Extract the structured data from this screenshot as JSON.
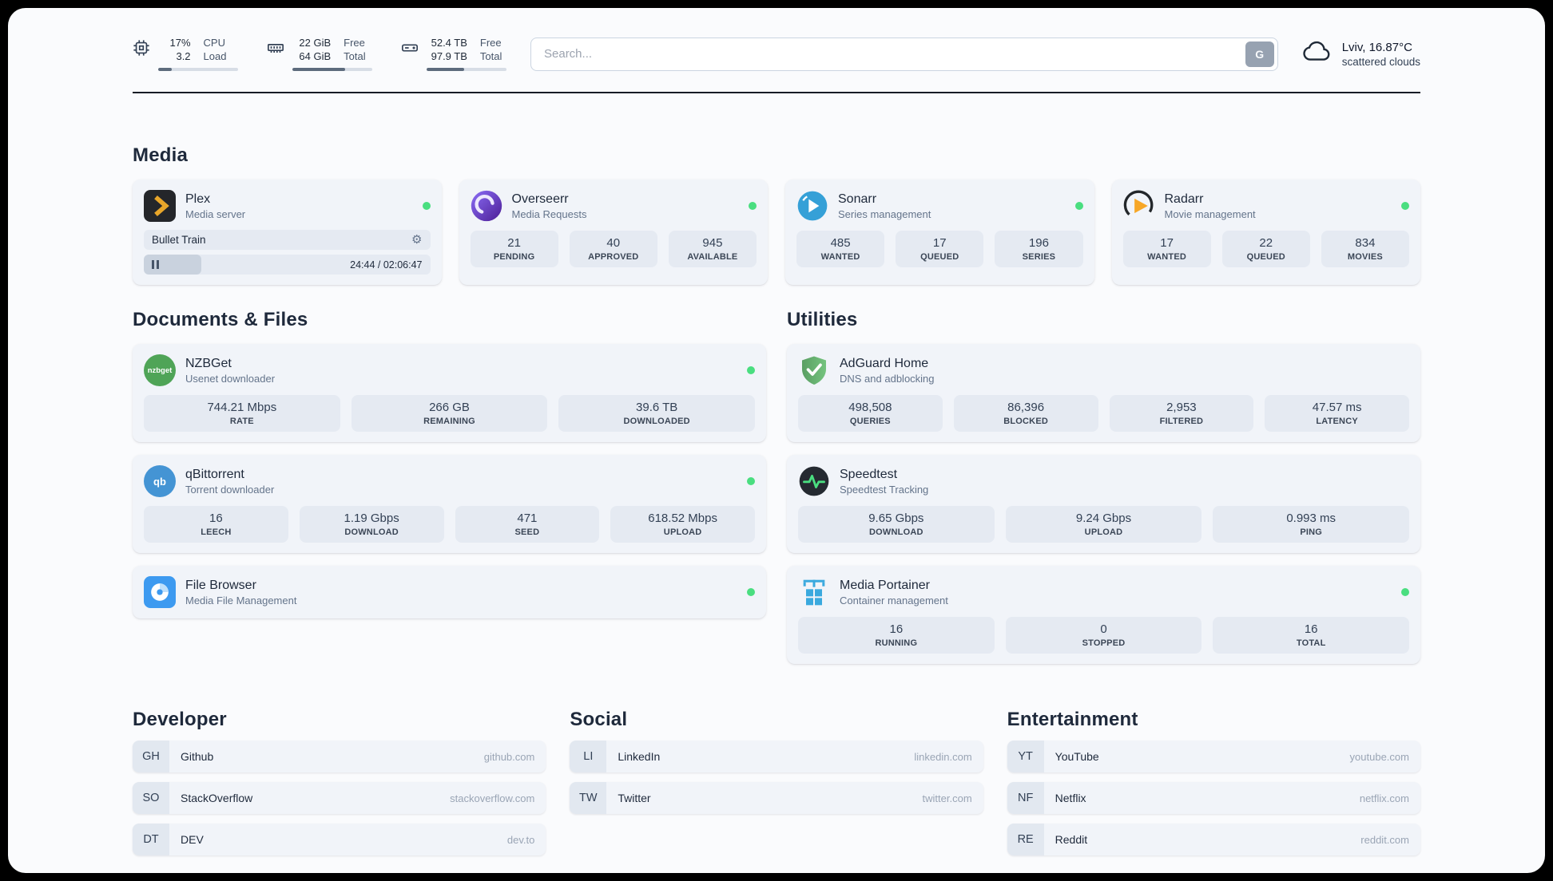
{
  "colors": {
    "status_online": "#4ade80",
    "accent_fill": "#5d6b7d"
  },
  "icons": {
    "gear": "⚙"
  },
  "topbar": {
    "resources": [
      {
        "name": "cpu",
        "values": [
          "17%",
          "3.2"
        ],
        "labels": [
          "CPU",
          "Load"
        ],
        "percent": 17
      },
      {
        "name": "memory",
        "values": [
          "22 GiB",
          "64 GiB"
        ],
        "labels": [
          "Free",
          "Total"
        ],
        "percent": 66
      },
      {
        "name": "disk",
        "values": [
          "52.4 TB",
          "97.9 TB"
        ],
        "labels": [
          "Free",
          "Total"
        ],
        "percent": 47
      }
    ],
    "search": {
      "placeholder": "Search...",
      "button_label": "G"
    },
    "weather": {
      "location": "Lviv, 16.87°C",
      "condition": "scattered clouds"
    }
  },
  "sections": {
    "media": {
      "title": "Media",
      "cards": [
        {
          "name": "Plex",
          "description": "Media server",
          "online": true,
          "player": {
            "track": "Bullet Train",
            "time_display": "24:44 / 02:06:47",
            "progress_percent": 20
          }
        },
        {
          "name": "Overseerr",
          "description": "Media Requests",
          "online": true,
          "stats": [
            {
              "value": "21",
              "label": "PENDING"
            },
            {
              "value": "40",
              "label": "APPROVED"
            },
            {
              "value": "945",
              "label": "AVAILABLE"
            }
          ]
        },
        {
          "name": "Sonarr",
          "description": "Series management",
          "online": true,
          "stats": [
            {
              "value": "485",
              "label": "WANTED"
            },
            {
              "value": "17",
              "label": "QUEUED"
            },
            {
              "value": "196",
              "label": "SERIES"
            }
          ]
        },
        {
          "name": "Radarr",
          "description": "Movie management",
          "online": true,
          "stats": [
            {
              "value": "17",
              "label": "WANTED"
            },
            {
              "value": "22",
              "label": "QUEUED"
            },
            {
              "value": "834",
              "label": "MOVIES"
            }
          ]
        }
      ]
    },
    "documents": {
      "title": "Documents & Files",
      "cards": [
        {
          "name": "NZBGet",
          "description": "Usenet downloader",
          "online": true,
          "icon_label": "nzbget",
          "stats": [
            {
              "value": "744.21 Mbps",
              "label": "RATE"
            },
            {
              "value": "266 GB",
              "label": "REMAINING"
            },
            {
              "value": "39.6 TB",
              "label": "DOWNLOADED"
            }
          ]
        },
        {
          "name": "qBittorrent",
          "description": "Torrent downloader",
          "online": true,
          "icon_label": "qb",
          "stats": [
            {
              "value": "16",
              "label": "LEECH"
            },
            {
              "value": "1.19 Gbps",
              "label": "DOWNLOAD"
            },
            {
              "value": "471",
              "label": "SEED"
            },
            {
              "value": "618.52 Mbps",
              "label": "UPLOAD"
            }
          ]
        },
        {
          "name": "File Browser",
          "description": "Media File Management",
          "online": true
        }
      ]
    },
    "utilities": {
      "title": "Utilities",
      "cards": [
        {
          "name": "AdGuard Home",
          "description": "DNS and adblocking",
          "online": false,
          "stats": [
            {
              "value": "498,508",
              "label": "QUERIES"
            },
            {
              "value": "86,396",
              "label": "BLOCKED"
            },
            {
              "value": "2,953",
              "label": "FILTERED"
            },
            {
              "value": "47.57 ms",
              "label": "LATENCY"
            }
          ]
        },
        {
          "name": "Speedtest",
          "description": "Speedtest Tracking",
          "online": false,
          "stats": [
            {
              "value": "9.65 Gbps",
              "label": "DOWNLOAD"
            },
            {
              "value": "9.24 Gbps",
              "label": "UPLOAD"
            },
            {
              "value": "0.993 ms",
              "label": "PING"
            }
          ]
        },
        {
          "name": "Media Portainer",
          "description": "Container management",
          "online": true,
          "stats": [
            {
              "value": "16",
              "label": "RUNNING"
            },
            {
              "value": "0",
              "label": "STOPPED"
            },
            {
              "value": "16",
              "label": "TOTAL"
            }
          ]
        }
      ]
    },
    "bookmarks": [
      {
        "title": "Developer",
        "items": [
          {
            "abbr": "GH",
            "name": "Github",
            "domain": "github.com"
          },
          {
            "abbr": "SO",
            "name": "StackOverflow",
            "domain": "stackoverflow.com"
          },
          {
            "abbr": "DT",
            "name": "DEV",
            "domain": "dev.to"
          }
        ]
      },
      {
        "title": "Social",
        "items": [
          {
            "abbr": "LI",
            "name": "LinkedIn",
            "domain": "linkedin.com"
          },
          {
            "abbr": "TW",
            "name": "Twitter",
            "domain": "twitter.com"
          }
        ]
      },
      {
        "title": "Entertainment",
        "items": [
          {
            "abbr": "YT",
            "name": "YouTube",
            "domain": "youtube.com"
          },
          {
            "abbr": "NF",
            "name": "Netflix",
            "domain": "netflix.com"
          },
          {
            "abbr": "RE",
            "name": "Reddit",
            "domain": "reddit.com"
          }
        ]
      }
    ]
  }
}
